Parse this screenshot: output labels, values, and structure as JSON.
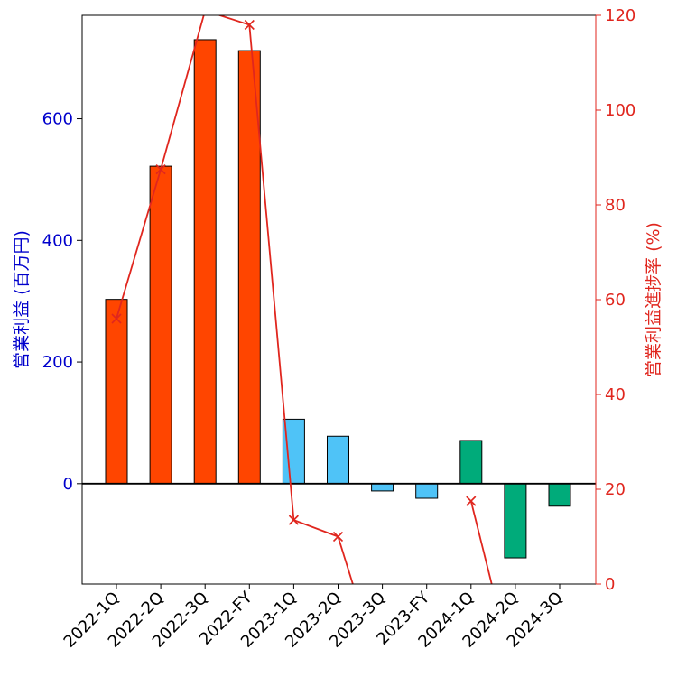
{
  "chart_data": {
    "type": "bar",
    "categories": [
      "2022-1Q",
      "2022-2Q",
      "2022-3Q",
      "2022-FY",
      "2023-1Q",
      "2023-2Q",
      "2023-3Q",
      "2023-FY",
      "2024-1Q",
      "2024-2Q",
      "2024-3Q"
    ],
    "ylabel_left": "営業利益 (百万円)",
    "ylabel_right": "営業利益進捗率 (%)",
    "xlabel": "",
    "ylim_left": [
      -165,
      770
    ],
    "ylim_right": [
      0,
      120
    ],
    "yticks_left": [
      0,
      200,
      400,
      600
    ],
    "yticks_right": [
      0,
      20,
      40,
      60,
      80,
      100,
      120
    ],
    "grid": false,
    "series": [
      {
        "axis": "left",
        "kind": "bar",
        "values": [
          303,
          522,
          730,
          712,
          106,
          78,
          -12,
          -24,
          71,
          -122,
          -37
        ],
        "colors": [
          "#ff4500",
          "#ff4500",
          "#ff4500",
          "#ff4500",
          "#4fc3f7",
          "#4fc3f7",
          "#4fc3f7",
          "#4fc3f7",
          "#00ab7a",
          "#00ab7a",
          "#00ab7a"
        ]
      },
      {
        "axis": "right",
        "kind": "line",
        "marker": "x",
        "color": "#e0261e",
        "values": [
          56,
          87.5,
          121,
          118,
          13.5,
          10,
          -20,
          null,
          17.5,
          -20,
          null
        ]
      }
    ]
  }
}
